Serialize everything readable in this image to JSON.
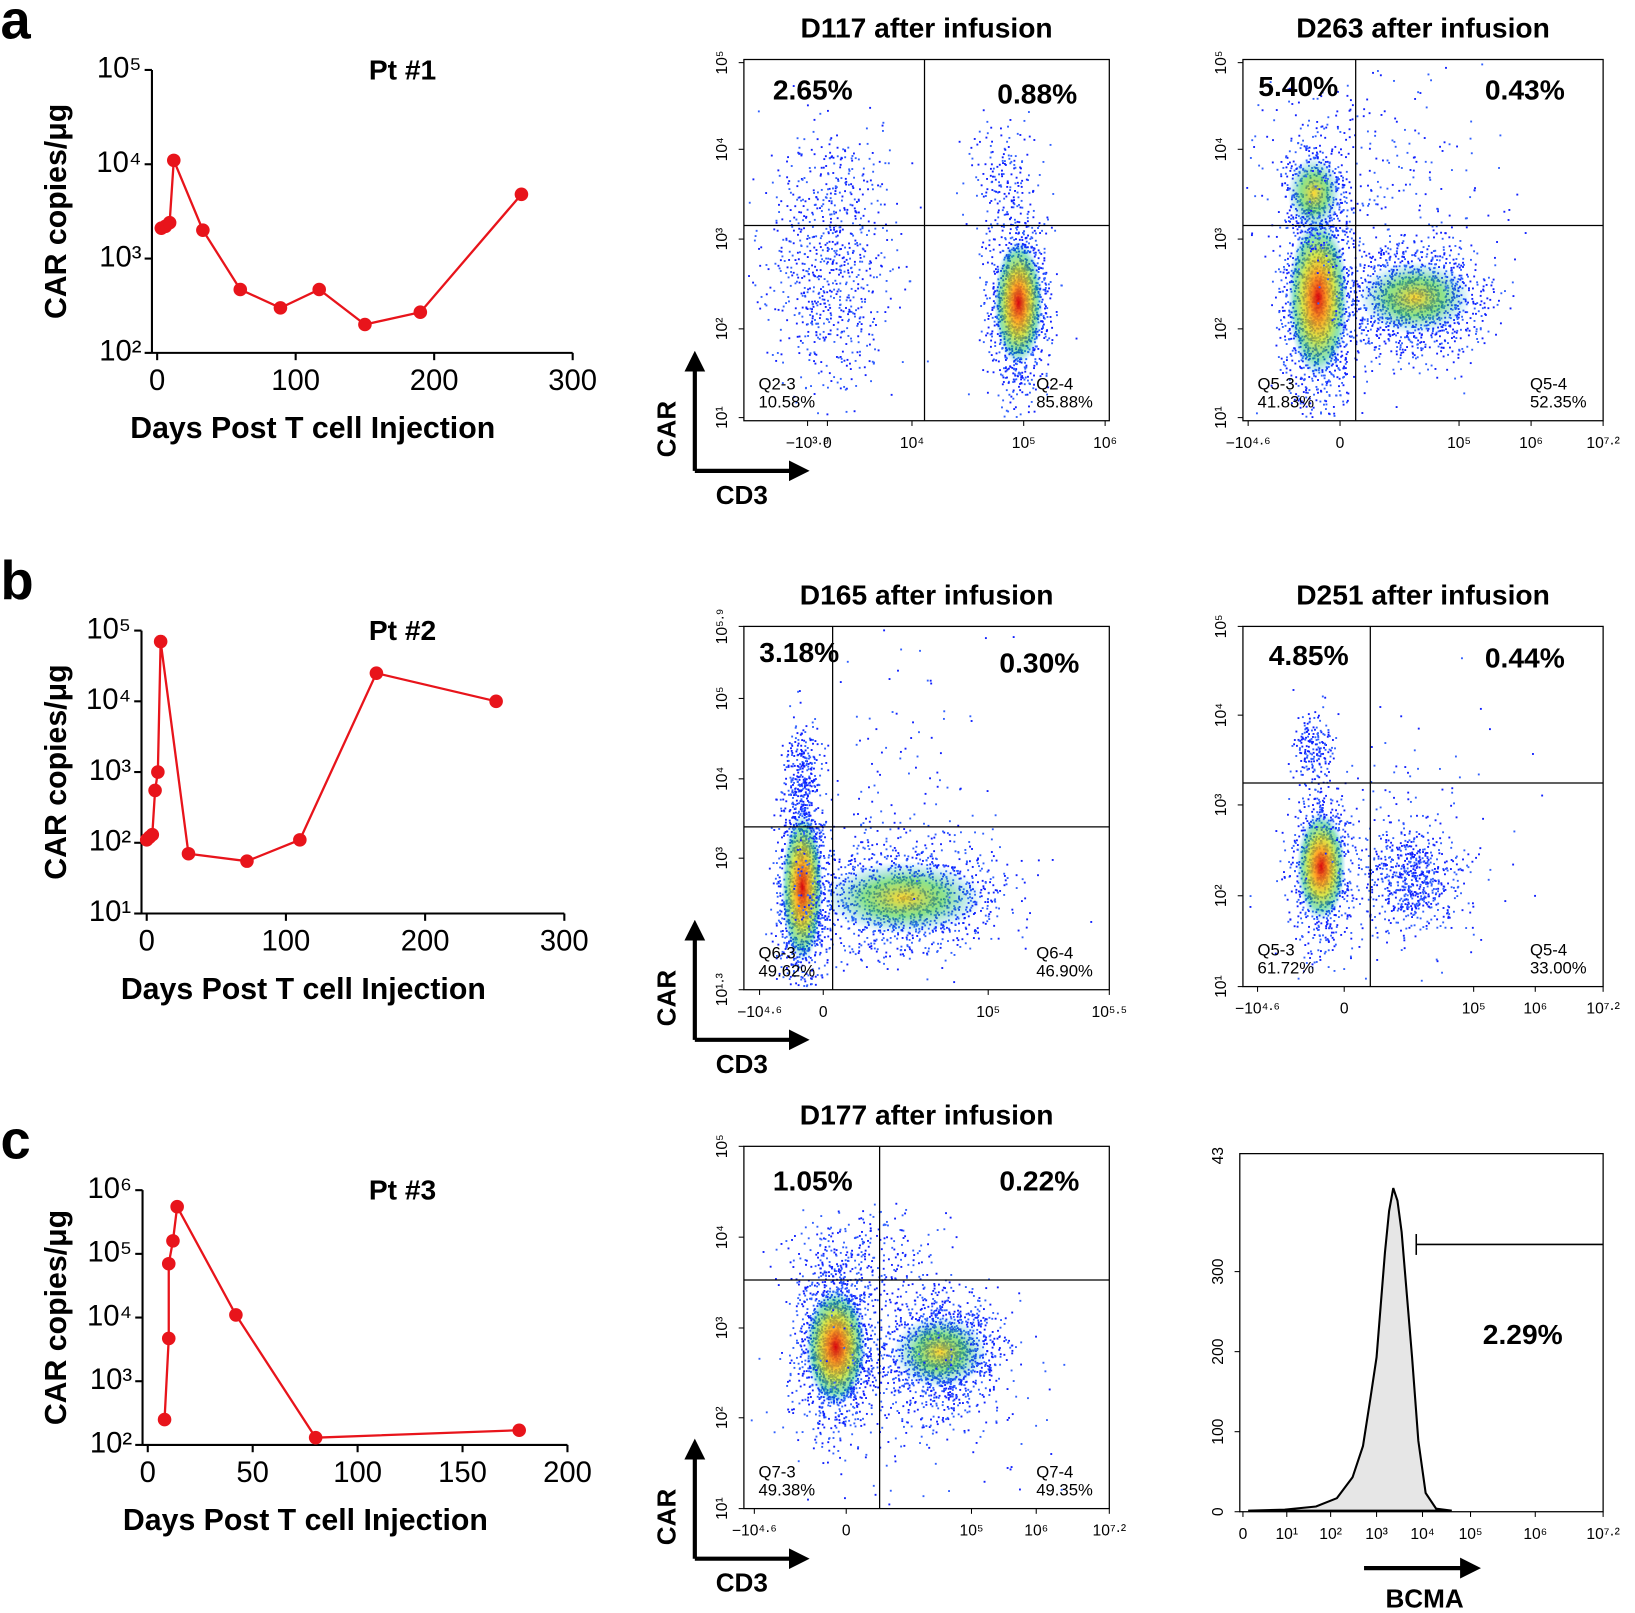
{
  "chart_data": [
    {
      "type": "line",
      "panel_label": "a",
      "title": "Pt #1",
      "ylabel": "CAR copies/μg",
      "xlabel": "Days Post T cell Injection",
      "log_y": true,
      "color": "#e8141b",
      "x": [
        3,
        6,
        9,
        12,
        33,
        60,
        89,
        117,
        150,
        190,
        263
      ],
      "values": [
        2100,
        2200,
        2400,
        11000,
        2000,
        470,
        300,
        470,
        200,
        270,
        4800
      ],
      "xlim": [
        0,
        300
      ],
      "xticks": [
        0,
        100,
        200,
        300
      ],
      "ylim": [
        100,
        100000
      ],
      "yticks": [
        {
          "value": 100,
          "label": "10²"
        },
        {
          "value": 1000,
          "label": "10³"
        },
        {
          "value": 10000,
          "label": "10⁴"
        },
        {
          "value": 100000,
          "label": "10⁵"
        }
      ]
    },
    {
      "type": "flow",
      "title": "D117 after infusion",
      "quadrant_labels": [
        "2.65%",
        "0.88%"
      ],
      "gates": [
        [
          "Q2-3",
          "10.58%"
        ],
        [
          "Q2-4",
          "85.88%"
        ]
      ],
      "yticks": [
        "10¹",
        "10²",
        "10³",
        "10⁴",
        "10⁵"
      ],
      "xticks": [
        "−10³·⁹",
        "0",
        "10⁴",
        "10⁵",
        "10⁶"
      ],
      "ylabel": "CAR",
      "xlabel": "CD3"
    },
    {
      "type": "flow",
      "title": "D263 after infusion",
      "quadrant_labels": [
        "5.40%",
        "0.43%"
      ],
      "gates": [
        [
          "Q5-3",
          "41.83%"
        ],
        [
          "Q5-4",
          "52.35%"
        ]
      ],
      "yticks": [
        "10¹",
        "10²",
        "10³",
        "10⁴",
        "10⁵"
      ],
      "xticks": [
        "−10⁴·⁶",
        "0",
        "10⁵",
        "10⁶",
        "10⁷·²"
      ]
    },
    {
      "type": "line",
      "panel_label": "b",
      "title": "Pt #2",
      "ylabel": "CAR copies/μg",
      "xlabel": "Days Post T cell Injection",
      "log_y": true,
      "color": "#e8141b",
      "x": [
        0,
        2,
        4,
        6,
        8,
        10,
        30,
        72,
        110,
        165,
        251
      ],
      "values": [
        110,
        120,
        130,
        550,
        1000,
        70000,
        70,
        55,
        110,
        25000,
        10000
      ],
      "xlim": [
        0,
        300
      ],
      "xticks": [
        0,
        100,
        200,
        300
      ],
      "ylim": [
        10,
        100000
      ],
      "yticks": [
        {
          "value": 10,
          "label": "10¹"
        },
        {
          "value": 100,
          "label": "10²"
        },
        {
          "value": 1000,
          "label": "10³"
        },
        {
          "value": 10000,
          "label": "10⁴"
        },
        {
          "value": 100000,
          "label": "10⁵"
        }
      ]
    },
    {
      "type": "flow",
      "title": "D165 after infusion",
      "quadrant_labels": [
        "3.18%",
        "0.30%"
      ],
      "gates": [
        [
          "Q6-3",
          "49.62%"
        ],
        [
          "Q6-4",
          "46.90%"
        ]
      ],
      "yticks": [
        "10¹·³",
        "10³",
        "10⁴",
        "10⁵",
        "10⁵·⁹"
      ],
      "xticks": [
        "−10⁴·⁶",
        "0",
        "10⁵",
        "10⁵·⁵"
      ],
      "ylabel": "CAR",
      "xlabel": "CD3"
    },
    {
      "type": "flow",
      "title": "D251 after infusion",
      "quadrant_labels": [
        "4.85%",
        "0.44%"
      ],
      "gates": [
        [
          "Q5-3",
          "61.72%"
        ],
        [
          "Q5-4",
          "33.00%"
        ]
      ],
      "yticks": [
        "10¹",
        "10²",
        "10³",
        "10⁴",
        "10⁵"
      ],
      "xticks": [
        "−10⁴·⁶",
        "0",
        "10⁵",
        "10⁶",
        "10⁷·²"
      ]
    },
    {
      "type": "line",
      "panel_label": "c",
      "title": "Pt #3",
      "ylabel": "CAR copies/μg",
      "xlabel": "Days Post T cell Injection",
      "log_y": true,
      "color": "#e8141b",
      "x": [
        8,
        10,
        10,
        12,
        14,
        42,
        80,
        177
      ],
      "values": [
        250,
        4700,
        70000,
        160000,
        550000,
        11000,
        130,
        170
      ],
      "xlim": [
        0,
        200
      ],
      "xticks": [
        0,
        50,
        100,
        150,
        200
      ],
      "ylim": [
        100,
        1000000
      ],
      "yticks": [
        {
          "value": 100,
          "label": "10²"
        },
        {
          "value": 1000,
          "label": "10³"
        },
        {
          "value": 10000,
          "label": "10⁴"
        },
        {
          "value": 100000,
          "label": "10⁵"
        },
        {
          "value": 1000000,
          "label": "10⁶"
        }
      ]
    },
    {
      "type": "flow",
      "title": "D177 after infusion",
      "quadrant_labels": [
        "1.05%",
        "0.22%"
      ],
      "gates": [
        [
          "Q7-3",
          "49.38%"
        ],
        [
          "Q7-4",
          "49.35%"
        ]
      ],
      "yticks": [
        "10¹",
        "10²",
        "10³",
        "10⁴",
        "10⁵"
      ],
      "xticks": [
        "−10⁴·⁶",
        "0",
        "10⁵",
        "10⁶",
        "10⁷·²"
      ],
      "ylabel": "CAR",
      "xlabel": "CD3"
    },
    {
      "type": "flow-histogram",
      "yticks": [
        0,
        100,
        200,
        300
      ],
      "top_label": "43",
      "xticks": [
        "0",
        "10¹",
        "10²",
        "10³",
        "10⁴",
        "10⁵",
        "10⁶",
        "10⁷·²"
      ],
      "gate_label": "2.29%",
      "xlabel": "BCMA"
    }
  ]
}
